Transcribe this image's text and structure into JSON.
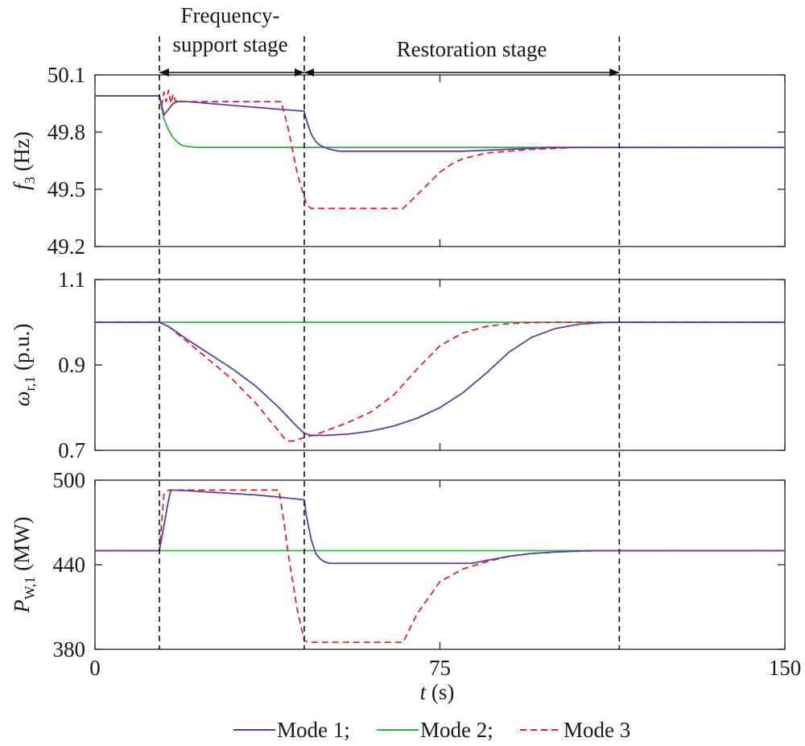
{
  "chart_data": {
    "type": "line",
    "x_axis": {
      "label_var": "t",
      "label_unit": " (s)",
      "range": [
        0,
        150
      ],
      "ticks": [
        "0",
        "75",
        "150"
      ]
    },
    "stage_markers": {
      "lines_at": [
        14,
        45.5,
        114
      ],
      "labels": {
        "frequency_line1": "Frequency-",
        "frequency_line2": "support stage",
        "restoration": "Restoration stage"
      }
    },
    "legend": [
      {
        "name": "Mode 1",
        "label": "Mode 1;",
        "color": "#5b3fa0",
        "dash": "solid"
      },
      {
        "name": "Mode 2",
        "label": "Mode 2;",
        "color": "#35b04a",
        "dash": "solid"
      },
      {
        "name": "Mode 3",
        "label": "Mode 3",
        "color": "#d9262e",
        "dash": "dashed"
      }
    ],
    "panels": [
      {
        "id": "f3",
        "ylabel": {
          "main": "f",
          "sub": "3",
          "unit": " (Hz)"
        },
        "ylim": [
          49.2,
          50.1
        ],
        "yticks": [
          "50.1",
          "49.8",
          "49.5",
          "49.2"
        ],
        "series": [
          {
            "name": "Mode 1",
            "x": [
              0,
              14,
              14.5,
              15,
              16,
              17,
              18,
              20,
              25,
              30,
              35,
              40,
              45.5,
              46,
              47,
              48,
              49,
              50,
              51,
              53,
              55,
              60,
              65,
              70,
              75,
              80,
              85,
              90,
              95,
              100,
              105,
              110,
              114,
              120,
              130,
              140,
              150
            ],
            "y": [
              49.99,
              49.99,
              49.94,
              49.89,
              49.92,
              49.95,
              49.96,
              49.96,
              49.95,
              49.94,
              49.93,
              49.92,
              49.91,
              49.86,
              49.79,
              49.75,
              49.73,
              49.72,
              49.71,
              49.7,
              49.7,
              49.7,
              49.7,
              49.7,
              49.7,
              49.7,
              49.705,
              49.71,
              49.715,
              49.72,
              49.72,
              49.72,
              49.72,
              49.72,
              49.72,
              49.72,
              49.72
            ]
          },
          {
            "name": "Mode 2",
            "x": [
              0,
              14,
              14.5,
              15,
              16,
              17,
              18,
              19,
              20,
              22,
              25,
              30,
              40,
              50,
              60,
              80,
              100,
              120,
              150
            ],
            "y": [
              49.99,
              49.99,
              49.93,
              49.87,
              49.81,
              49.77,
              49.745,
              49.73,
              49.725,
              49.72,
              49.72,
              49.72,
              49.72,
              49.72,
              49.72,
              49.72,
              49.72,
              49.72,
              49.72
            ]
          },
          {
            "name": "Mode 3",
            "x": [
              0,
              14,
              14.5,
              15,
              15.5,
              16,
              16.5,
              17,
              17.5,
              18,
              19,
              20,
              25,
              30,
              35,
              40,
              40.5,
              42,
              43,
              44,
              45.5,
              46,
              47,
              50,
              55,
              60,
              65,
              67,
              70,
              75,
              78,
              80,
              85,
              90,
              95,
              100,
              105,
              110,
              114,
              120,
              130,
              150
            ],
            "y": [
              49.99,
              49.99,
              49.94,
              50.01,
              49.96,
              50.02,
              49.95,
              50.0,
              49.96,
              49.97,
              49.96,
              49.96,
              49.96,
              49.96,
              49.96,
              49.96,
              49.96,
              49.82,
              49.7,
              49.58,
              49.46,
              49.42,
              49.4,
              49.4,
              49.4,
              49.4,
              49.4,
              49.4,
              49.47,
              49.59,
              49.64,
              49.66,
              49.69,
              49.7,
              49.71,
              49.715,
              49.72,
              49.72,
              49.72,
              49.72,
              49.72,
              49.72
            ]
          }
        ]
      },
      {
        "id": "wr1",
        "ylabel": {
          "main": "ω",
          "sub": "r,1",
          "unit": " (p.u.)"
        },
        "ylim": [
          0.7,
          1.1
        ],
        "yticks": [
          "1.1",
          "0.9",
          "0.7"
        ],
        "series": [
          {
            "name": "Mode 1",
            "x": [
              0,
              14,
              16,
              20,
              25,
              30,
              35,
              40,
              44,
              45.5,
              47,
              50,
              55,
              60,
              65,
              70,
              75,
              80,
              85,
              90,
              95,
              100,
              105,
              110,
              114,
              120,
              130,
              150
            ],
            "y": [
              1.0,
              1.0,
              0.99,
              0.96,
              0.925,
              0.89,
              0.85,
              0.8,
              0.755,
              0.74,
              0.735,
              0.735,
              0.738,
              0.745,
              0.757,
              0.775,
              0.8,
              0.835,
              0.88,
              0.93,
              0.965,
              0.985,
              0.995,
              0.999,
              1.0,
              1.0,
              1.0,
              1.0
            ]
          },
          {
            "name": "Mode 2",
            "x": [
              0,
              150
            ],
            "y": [
              1.0,
              1.0
            ]
          },
          {
            "name": "Mode 3",
            "x": [
              0,
              14,
              16,
              20,
              25,
              30,
              35,
              38,
              40,
              41,
              42,
              43,
              45.5,
              48,
              50,
              55,
              60,
              65,
              70,
              75,
              80,
              85,
              90,
              95,
              100,
              110,
              150
            ],
            "y": [
              1.0,
              1.0,
              0.99,
              0.955,
              0.91,
              0.865,
              0.81,
              0.77,
              0.745,
              0.73,
              0.722,
              0.722,
              0.73,
              0.737,
              0.745,
              0.765,
              0.79,
              0.83,
              0.89,
              0.945,
              0.975,
              0.99,
              0.997,
              0.999,
              1.0,
              1.0,
              1.0
            ]
          }
        ]
      },
      {
        "id": "pw1",
        "ylabel": {
          "main": "P",
          "sub": "W,1",
          "unit": " (MW)"
        },
        "ylim": [
          380,
          500
        ],
        "yticks": [
          "500",
          "440",
          "380"
        ],
        "series": [
          {
            "name": "Mode 1",
            "x": [
              0,
              14,
              16,
              16.5,
              20,
              25,
              30,
              35,
              40,
              45.5,
              46,
              47,
              48,
              49,
              50,
              51,
              53,
              55,
              60,
              65,
              70,
              75,
              80,
              82,
              85,
              90,
              95,
              100,
              105,
              110,
              114,
              120,
              150
            ],
            "y": [
              450,
              450,
              486,
              493,
              492.5,
              491.5,
              490.5,
              489.5,
              488,
              486,
              474,
              458,
              448,
              444,
              442,
              441,
              441,
              441,
              441,
              441,
              441,
              441,
              441,
              441,
              443,
              446,
              448,
              449,
              449.7,
              450,
              450,
              450,
              450
            ]
          },
          {
            "name": "Mode 2",
            "x": [
              0,
              150
            ],
            "y": [
              450,
              450
            ]
          },
          {
            "name": "Mode 3",
            "x": [
              0,
              14,
              14.5,
              15,
              16,
              17,
              20,
              25,
              30,
              35,
              39,
              40,
              41,
              42,
              43,
              44,
              45.5,
              47,
              50,
              55,
              60,
              65,
              66,
              67,
              70,
              75,
              80,
              85,
              90,
              95,
              100,
              105,
              110,
              114,
              120,
              150
            ],
            "y": [
              450,
              450,
              470,
              490,
              493,
              493,
              493,
              493,
              493,
              493,
              493,
              493,
              472,
              448,
              428,
              408,
              386,
              385,
              385,
              385,
              385,
              385,
              385,
              385,
              405,
              428,
              437,
              442,
              446,
              448,
              449,
              449.6,
              450,
              450,
              450,
              450
            ]
          }
        ]
      }
    ]
  }
}
